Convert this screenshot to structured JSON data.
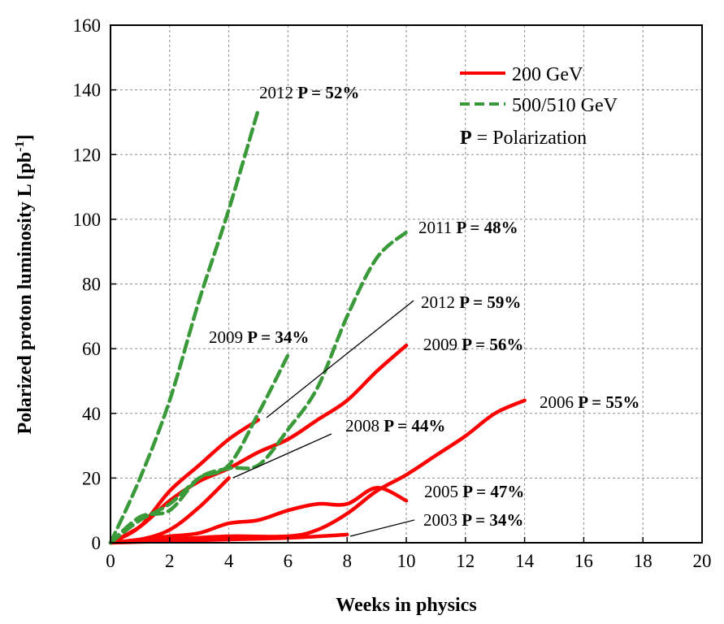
{
  "chart_data": {
    "type": "line",
    "xlabel": "Weeks in physics",
    "ylabel": "Polarized proton luminosity L [pb",
    "ylabel_sup": "-1",
    "ylabel_end": "]",
    "xlim": [
      0,
      20
    ],
    "ylim": [
      0,
      160
    ],
    "xticks": [
      "0",
      "2",
      "4",
      "6",
      "8",
      "10",
      "12",
      "14",
      "16",
      "18",
      "20"
    ],
    "yticks": [
      "0",
      "20",
      "40",
      "60",
      "80",
      "100",
      "120",
      "140",
      "160"
    ],
    "grid": true,
    "legend_position": "top-right",
    "legend": {
      "solid": "200 GeV",
      "dashed": "500/510 GeV",
      "note_bold": "P",
      "note_rest": " = Polarization"
    },
    "colors": {
      "solid": "#ff0000",
      "dashed": "#3a9a3a"
    },
    "series": [
      {
        "year": "2012",
        "pol": "P = 52%",
        "style": "dashed",
        "x": [
          0,
          1,
          2,
          3,
          4,
          5
        ],
        "y": [
          0,
          20,
          44,
          75,
          103,
          134
        ]
      },
      {
        "year": "2011",
        "pol": "P = 48%",
        "style": "dashed",
        "x": [
          0,
          1,
          2,
          3,
          4,
          5,
          6,
          7,
          8,
          9,
          10
        ],
        "y": [
          0,
          8,
          10,
          20,
          23,
          24,
          35,
          48,
          70,
          88,
          96
        ]
      },
      {
        "year": "2009",
        "pol": "P = 34%",
        "style": "dashed",
        "x": [
          0,
          1,
          2,
          3,
          4,
          5,
          6
        ],
        "y": [
          0,
          7,
          12,
          20,
          24,
          40,
          58
        ]
      },
      {
        "year": "2012",
        "pol": "P = 59%",
        "style": "solid",
        "x": [
          0,
          1,
          2,
          3,
          4,
          5
        ],
        "y": [
          0,
          5,
          16,
          24,
          32,
          38
        ]
      },
      {
        "year": "2009",
        "pol": "P = 56%",
        "style": "solid",
        "x": [
          0,
          1,
          2,
          3,
          4,
          5,
          6,
          7,
          8,
          9,
          10
        ],
        "y": [
          0,
          5,
          13,
          19,
          23,
          28,
          32,
          38,
          44,
          53,
          61
        ]
      },
      {
        "year": "2008",
        "pol": "P = 44%",
        "style": "solid",
        "x": [
          0,
          1,
          2,
          3,
          4
        ],
        "y": [
          0,
          1,
          4,
          11,
          20
        ]
      },
      {
        "year": "2006",
        "pol": "P = 55%",
        "style": "solid",
        "x": [
          0,
          2,
          4,
          6,
          7,
          8,
          9,
          10,
          11,
          12,
          13,
          14
        ],
        "y": [
          0,
          1,
          2,
          2,
          4,
          9,
          16,
          21,
          27,
          33,
          40,
          44
        ]
      },
      {
        "year": "2005",
        "pol": "P = 47%",
        "style": "solid",
        "x": [
          0,
          1,
          2,
          3,
          4,
          5,
          6,
          7,
          8,
          9,
          10
        ],
        "y": [
          0,
          1,
          2,
          3,
          6,
          7,
          10,
          12,
          12,
          17,
          13
        ]
      },
      {
        "year": "2003",
        "pol": "P = 34%",
        "style": "solid",
        "x": [
          0,
          2,
          4,
          6,
          8
        ],
        "y": [
          0,
          0.5,
          1,
          1.5,
          2.5
        ]
      }
    ]
  }
}
